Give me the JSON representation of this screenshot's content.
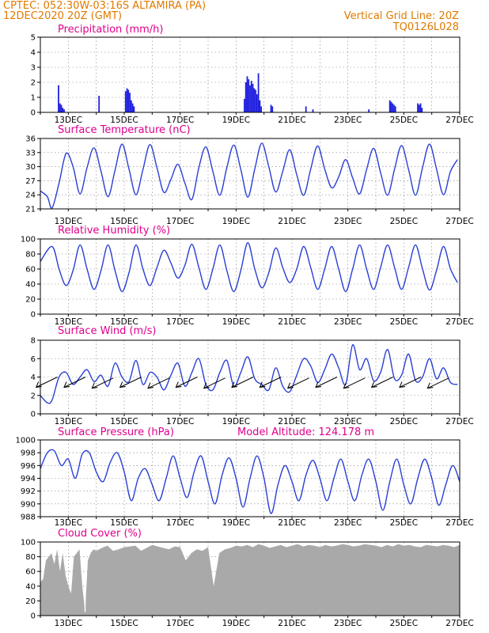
{
  "header": {
    "line1": "CPTEC:   052:30W-03:16S   ALTAMIRA (PA)",
    "line2": "12DEC2020 20Z (GMT)",
    "grid_note": "Vertical Grid Line: 20Z",
    "code": "TQ0126L028"
  },
  "x_ticks": [
    "13DEC",
    "15DEC",
    "17DEC",
    "19DEC",
    "21DEC",
    "23DEC",
    "25DEC",
    "27DEC"
  ],
  "colors": {
    "series": "#2b3fd4",
    "precip": "#2020e0",
    "cloud": "#a9a9a9",
    "title": "#e0008c",
    "header": "#e07a00"
  },
  "model_altitude": "Model Altitude: 124.178 m",
  "chart_data": [
    {
      "id": "precip",
      "type": "bar",
      "title": "Precipitation (mm/h)",
      "ylim": [
        0,
        5
      ],
      "yticks": [
        0,
        1,
        2,
        3,
        4,
        5
      ],
      "x_unit": "days since 12DEC 20Z",
      "bars": [
        [
          0.65,
          1.8
        ],
        [
          0.7,
          0.6
        ],
        [
          0.75,
          0.5
        ],
        [
          0.8,
          0.3
        ],
        [
          0.85,
          0.2
        ],
        [
          2.1,
          1.1
        ],
        [
          3.05,
          1.4
        ],
        [
          3.1,
          1.6
        ],
        [
          3.15,
          1.5
        ],
        [
          3.2,
          1.3
        ],
        [
          3.25,
          0.8
        ],
        [
          3.3,
          0.6
        ],
        [
          3.35,
          0.4
        ],
        [
          7.3,
          0.9
        ],
        [
          7.35,
          2.0
        ],
        [
          7.4,
          2.4
        ],
        [
          7.45,
          2.2
        ],
        [
          7.5,
          1.8
        ],
        [
          7.55,
          2.1
        ],
        [
          7.6,
          1.9
        ],
        [
          7.65,
          1.6
        ],
        [
          7.7,
          1.5
        ],
        [
          7.75,
          1.2
        ],
        [
          7.8,
          2.6
        ],
        [
          7.85,
          0.8
        ],
        [
          7.9,
          0.4
        ],
        [
          8.25,
          0.5
        ],
        [
          8.3,
          0.4
        ],
        [
          9.5,
          0.4
        ],
        [
          9.75,
          0.2
        ],
        [
          11.75,
          0.2
        ],
        [
          12.5,
          0.8
        ],
        [
          12.55,
          0.7
        ],
        [
          12.6,
          0.6
        ],
        [
          12.65,
          0.5
        ],
        [
          12.7,
          0.4
        ],
        [
          13.5,
          0.6
        ],
        [
          13.55,
          0.5
        ],
        [
          13.6,
          0.6
        ],
        [
          13.65,
          0.3
        ]
      ]
    },
    {
      "id": "temp",
      "type": "line",
      "title": "Surface Temperature (nC)",
      "ylim": [
        21,
        36
      ],
      "yticks": [
        21,
        24,
        27,
        30,
        33,
        36
      ],
      "x_unit": "days since 12DEC 20Z",
      "x": [
        0,
        0.25,
        0.42,
        0.67,
        0.92,
        1.17,
        1.42,
        1.67,
        1.92,
        2.17,
        2.42,
        2.67,
        2.92,
        3.17,
        3.42,
        3.67,
        3.92,
        4.17,
        4.42,
        4.67,
        4.92,
        5.17,
        5.42,
        5.67,
        5.92,
        6.17,
        6.42,
        6.67,
        6.92,
        7.17,
        7.42,
        7.67,
        7.92,
        8.17,
        8.42,
        8.67,
        8.92,
        9.17,
        9.42,
        9.67,
        9.92,
        10.17,
        10.42,
        10.67,
        10.92,
        11.17,
        11.42,
        11.67,
        11.92,
        12.17,
        12.42,
        12.67,
        12.92,
        13.17,
        13.42,
        13.67,
        13.92,
        14.17,
        14.42,
        14.67,
        14.92
      ],
      "values": [
        24.8,
        23.6,
        21.2,
        26.5,
        32.8,
        30.0,
        24.2,
        29.8,
        34.0,
        29.0,
        23.6,
        29.2,
        34.8,
        29.5,
        24.0,
        29.4,
        34.7,
        29.8,
        24.5,
        27.3,
        30.5,
        26.5,
        23.0,
        29.8,
        34.2,
        29.0,
        23.9,
        29.8,
        34.6,
        29.4,
        23.5,
        29.5,
        35.0,
        30.0,
        24.6,
        29.0,
        33.6,
        28.3,
        23.9,
        29.5,
        34.4,
        29.5,
        25.5,
        27.8,
        31.5,
        27.6,
        24.2,
        29.4,
        33.9,
        28.7,
        23.9,
        29.5,
        34.5,
        29.4,
        23.9,
        29.8,
        34.8,
        29.5,
        24.0,
        29.0,
        31.5
      ]
    },
    {
      "id": "rh",
      "type": "line",
      "title": "Relative Humidity (%)",
      "ylim": [
        0,
        100
      ],
      "yticks": [
        0,
        20,
        40,
        60,
        80,
        100
      ],
      "x_unit": "days since 12DEC 20Z",
      "x": [
        0,
        0.42,
        0.67,
        0.92,
        1.17,
        1.42,
        1.67,
        1.92,
        2.17,
        2.42,
        2.67,
        2.92,
        3.17,
        3.42,
        3.67,
        3.92,
        4.17,
        4.42,
        4.67,
        4.92,
        5.17,
        5.42,
        5.67,
        5.92,
        6.17,
        6.42,
        6.67,
        6.92,
        7.17,
        7.42,
        7.67,
        7.92,
        8.17,
        8.42,
        8.67,
        8.92,
        9.17,
        9.42,
        9.67,
        9.92,
        10.17,
        10.42,
        10.67,
        10.92,
        11.17,
        11.42,
        11.67,
        11.92,
        12.17,
        12.42,
        12.67,
        12.92,
        13.17,
        13.42,
        13.67,
        13.92,
        14.17,
        14.42,
        14.67,
        14.92
      ],
      "values": [
        70,
        90,
        60,
        38,
        58,
        92,
        60,
        33,
        58,
        92,
        58,
        30,
        55,
        92,
        60,
        38,
        62,
        85,
        68,
        48,
        65,
        93,
        62,
        33,
        60,
        92,
        58,
        30,
        58,
        95,
        60,
        35,
        55,
        88,
        62,
        42,
        60,
        90,
        62,
        33,
        60,
        90,
        60,
        30,
        60,
        92,
        60,
        33,
        62,
        92,
        62,
        33,
        62,
        92,
        60,
        32,
        58,
        90,
        60,
        42
      ]
    },
    {
      "id": "wind",
      "type": "line",
      "title": "Surface Wind (m/s)",
      "ylim": [
        0,
        8
      ],
      "yticks": [
        0,
        2,
        4,
        6,
        8
      ],
      "x_unit": "days since 12DEC 20Z",
      "x": [
        0,
        0.25,
        0.42,
        0.67,
        0.92,
        1.17,
        1.42,
        1.67,
        1.92,
        2.17,
        2.42,
        2.67,
        2.92,
        3.17,
        3.42,
        3.67,
        3.92,
        4.17,
        4.42,
        4.67,
        4.92,
        5.17,
        5.42,
        5.67,
        5.92,
        6.17,
        6.42,
        6.67,
        6.92,
        7.17,
        7.42,
        7.67,
        7.92,
        8.17,
        8.42,
        8.67,
        8.92,
        9.17,
        9.42,
        9.67,
        9.92,
        10.17,
        10.42,
        10.67,
        10.92,
        11.17,
        11.42,
        11.67,
        11.92,
        12.17,
        12.42,
        12.67,
        12.92,
        13.17,
        13.42,
        13.67,
        13.92,
        14.17,
        14.42,
        14.67,
        14.92
      ],
      "values": [
        2.0,
        1.2,
        1.5,
        4.0,
        4.5,
        3.2,
        4.0,
        4.8,
        3.5,
        4.2,
        3.0,
        5.5,
        4.0,
        3.5,
        5.8,
        3.2,
        4.5,
        4.0,
        2.6,
        4.2,
        5.5,
        3.0,
        4.5,
        6.0,
        3.2,
        2.6,
        4.5,
        5.8,
        3.0,
        4.5,
        6.2,
        3.8,
        3.2,
        2.6,
        5.0,
        3.0,
        2.4,
        4.2,
        6.0,
        5.2,
        3.4,
        4.8,
        6.5,
        5.0,
        3.2,
        7.5,
        4.8,
        6.0,
        3.6,
        4.5,
        7.0,
        3.8,
        4.2,
        6.5,
        3.6,
        4.0,
        6.0,
        3.8,
        5.0,
        3.4,
        3.2
      ],
      "vectors": [
        [
          0.5,
          4.0
        ],
        [
          1.5,
          4.0
        ],
        [
          2.5,
          3.9
        ],
        [
          3.5,
          4.0
        ],
        [
          4.5,
          3.9
        ],
        [
          5.5,
          4.0
        ],
        [
          6.5,
          3.9
        ],
        [
          7.5,
          4.0
        ],
        [
          8.5,
          4.0
        ],
        [
          9.5,
          3.9
        ],
        [
          10.5,
          4.0
        ],
        [
          11.5,
          3.9
        ],
        [
          12.5,
          4.0
        ],
        [
          13.5,
          4.0
        ],
        [
          14.5,
          3.9
        ]
      ]
    },
    {
      "id": "pressure",
      "type": "line",
      "title": "Surface Pressure (hPa)",
      "ylim": [
        988,
        1000
      ],
      "yticks": [
        988,
        990,
        992,
        994,
        996,
        998,
        1000
      ],
      "x_unit": "days since 12DEC 20Z",
      "x": [
        0,
        0.25,
        0.5,
        0.75,
        1.0,
        1.25,
        1.5,
        1.75,
        2.0,
        2.25,
        2.5,
        2.75,
        3.0,
        3.25,
        3.5,
        3.75,
        4.0,
        4.25,
        4.5,
        4.75,
        5.0,
        5.25,
        5.5,
        5.75,
        6.0,
        6.25,
        6.5,
        6.75,
        7.0,
        7.25,
        7.5,
        7.75,
        8.0,
        8.25,
        8.5,
        8.75,
        9.0,
        9.25,
        9.5,
        9.75,
        10.0,
        10.25,
        10.5,
        10.75,
        11.0,
        11.25,
        11.5,
        11.75,
        12.0,
        12.25,
        12.5,
        12.75,
        13.0,
        13.25,
        13.5,
        13.75,
        14.0,
        14.25,
        14.5,
        14.75,
        15.0
      ],
      "values": [
        995.5,
        998.0,
        998.3,
        996.0,
        997.0,
        994.0,
        997.8,
        998.0,
        995.0,
        993.5,
        996.5,
        998.0,
        995.0,
        990.5,
        994.0,
        995.5,
        993.0,
        990.5,
        994.0,
        997.5,
        994.0,
        991.0,
        995.0,
        997.5,
        993.5,
        990.0,
        994.5,
        997.2,
        994.0,
        989.5,
        994.0,
        997.5,
        994.0,
        988.5,
        993.0,
        996.0,
        993.5,
        990.5,
        994.5,
        996.8,
        994.0,
        990.5,
        994.0,
        997.0,
        993.5,
        990.5,
        994.5,
        997.0,
        993.5,
        989.0,
        993.5,
        997.0,
        993.0,
        990.0,
        994.0,
        997.0,
        994.0,
        989.8,
        993.0,
        996.0,
        993.5
      ]
    },
    {
      "id": "cloud",
      "type": "area",
      "title": "Cloud Cover (%)",
      "ylim": [
        0,
        100
      ],
      "yticks": [
        0,
        20,
        40,
        60,
        80,
        100
      ],
      "x_unit": "days since 12DEC 20Z",
      "x": [
        0,
        0.1,
        0.2,
        0.3,
        0.4,
        0.5,
        0.6,
        0.7,
        0.8,
        0.9,
        1.0,
        1.1,
        1.2,
        1.3,
        1.4,
        1.5,
        1.6,
        1.7,
        1.8,
        1.9,
        2.0,
        2.2,
        2.4,
        2.6,
        2.8,
        3.0,
        3.2,
        3.4,
        3.6,
        3.8,
        4.0,
        4.2,
        4.4,
        4.6,
        4.8,
        5.0,
        5.2,
        5.4,
        5.6,
        5.8,
        6.0,
        6.2,
        6.4,
        6.6,
        6.8,
        7.0,
        7.2,
        7.4,
        7.6,
        7.8,
        8.0,
        8.2,
        8.4,
        8.6,
        8.8,
        9.0,
        9.2,
        9.4,
        9.6,
        9.8,
        10.0,
        10.2,
        10.4,
        10.6,
        10.8,
        11.0,
        11.2,
        11.4,
        11.6,
        11.8,
        12.0,
        12.2,
        12.4,
        12.6,
        12.8,
        13.0,
        13.2,
        13.4,
        13.6,
        13.8,
        14.0,
        14.2,
        14.4,
        14.6,
        14.8,
        15.0
      ],
      "values": [
        45,
        50,
        75,
        80,
        85,
        70,
        90,
        60,
        85,
        55,
        40,
        30,
        80,
        85,
        90,
        40,
        5,
        75,
        85,
        90,
        88,
        92,
        95,
        88,
        90,
        93,
        94,
        95,
        88,
        92,
        96,
        94,
        92,
        90,
        94,
        93,
        75,
        85,
        90,
        88,
        93,
        40,
        85,
        90,
        92,
        95,
        94,
        96,
        93,
        97,
        95,
        92,
        94,
        96,
        93,
        95,
        97,
        94,
        96,
        95,
        93,
        96,
        94,
        95,
        97,
        96,
        94,
        95,
        97,
        96,
        95,
        93,
        96,
        94,
        97,
        95,
        96,
        94,
        93,
        96,
        95,
        94,
        96,
        95,
        93,
        96
      ]
    }
  ]
}
